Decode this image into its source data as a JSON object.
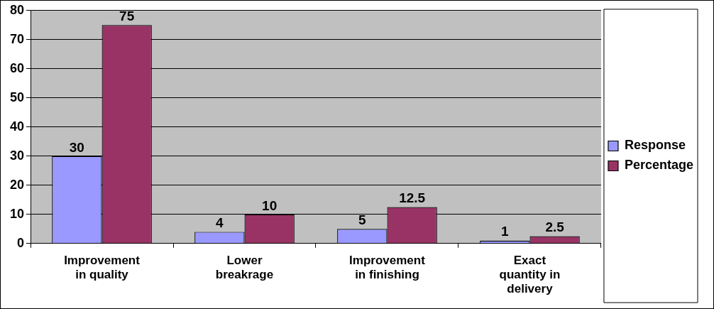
{
  "chart_data": {
    "type": "bar",
    "categories": [
      "Improvement in quality",
      "Lower breakrage",
      "Improvement in finishing",
      "Exact quantity in delivery"
    ],
    "series": [
      {
        "name": "Response",
        "color": "#9999ff",
        "values": [
          30,
          4,
          5,
          1
        ]
      },
      {
        "name": "Percentage",
        "color": "#993366",
        "values": [
          75,
          10,
          12.5,
          2.5
        ]
      }
    ],
    "ylim": [
      0,
      80
    ],
    "yticks": [
      0,
      10,
      20,
      30,
      40,
      50,
      60,
      70,
      80
    ],
    "grid": "y",
    "legend": "right",
    "data_labels": true
  }
}
